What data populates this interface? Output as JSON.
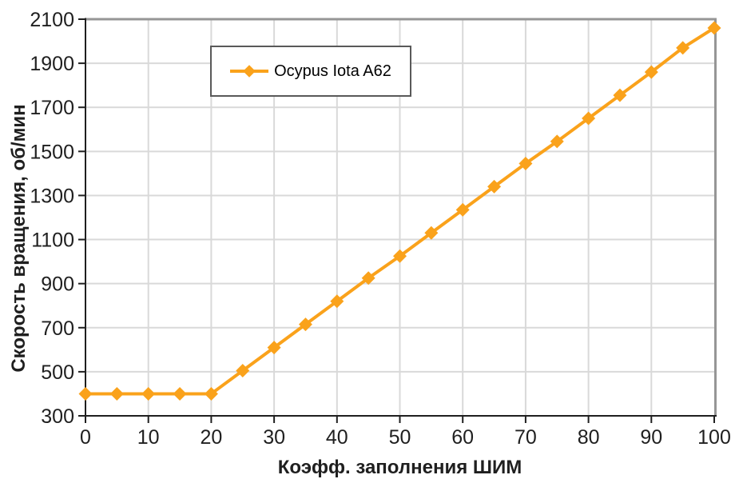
{
  "chart_data": {
    "type": "line",
    "title": "",
    "xlabel": "Коэфф. заполнения ШИМ",
    "ylabel": "Скорость вращения, об/мин",
    "xlim": [
      0,
      100
    ],
    "ylim": [
      300,
      2100
    ],
    "x_ticks": [
      0,
      10,
      20,
      30,
      40,
      50,
      60,
      70,
      80,
      90,
      100
    ],
    "y_ticks": [
      300,
      500,
      700,
      900,
      1100,
      1300,
      1500,
      1700,
      1900,
      2100
    ],
    "grid": true,
    "legend_position": "top-left-inside",
    "series": [
      {
        "name": "Ocypus Iota A62",
        "color": "#FAA21B",
        "marker": "diamond",
        "x": [
          0,
          5,
          10,
          15,
          20,
          25,
          30,
          35,
          40,
          45,
          50,
          55,
          60,
          65,
          70,
          75,
          80,
          85,
          90,
          95,
          100
        ],
        "values": [
          400,
          400,
          400,
          400,
          400,
          505,
          610,
          715,
          820,
          925,
          1025,
          1130,
          1235,
          1340,
          1445,
          1545,
          1650,
          1755,
          1860,
          1970,
          2060
        ]
      }
    ]
  },
  "colors": {
    "series": "#FAA21B",
    "grid": "#D9D9D9",
    "axis": "#1F1F1F",
    "border": "#969696",
    "text": "#1F1F1F",
    "legend_border": "#595959",
    "background": "#FFFFFF"
  }
}
